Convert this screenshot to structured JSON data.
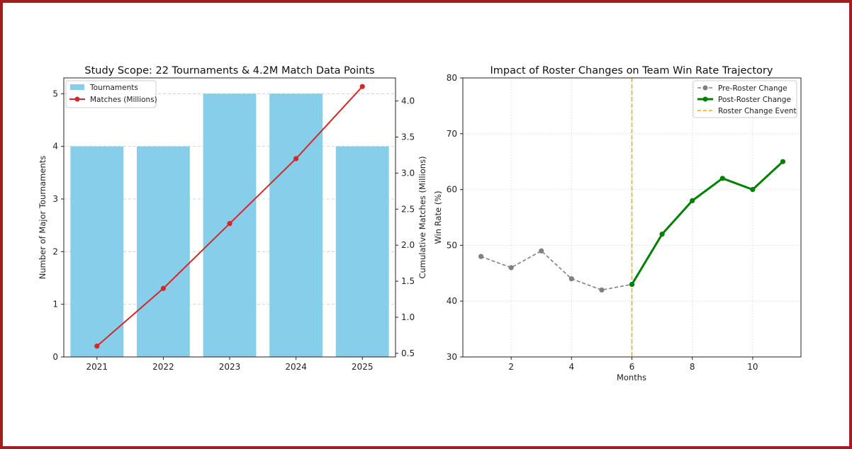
{
  "chart_data": [
    {
      "type": "bar+line",
      "title": "Study Scope: 22 Tournaments & 4.2M Match Data Points",
      "xlabel": "",
      "ylabel": "Number of Major Tournaments",
      "y2label": "Cumulative Matches (Millions)",
      "categories": [
        "2021",
        "2022",
        "2023",
        "2024",
        "2025"
      ],
      "ylim": [
        0,
        5.3
      ],
      "yticks": [
        0,
        1,
        2,
        3,
        4,
        5
      ],
      "y2lim": [
        0.45,
        4.32
      ],
      "y2ticks": [
        0.5,
        1.0,
        1.5,
        2.0,
        2.5,
        3.0,
        3.5,
        4.0
      ],
      "grid": "y-dashed",
      "legend_position": "top-left",
      "series": [
        {
          "name": "Tournaments",
          "kind": "bar",
          "axis": "left",
          "color": "#87ceeb",
          "values": [
            4,
            4,
            5,
            5,
            4
          ]
        },
        {
          "name": "Matches (Millions)",
          "kind": "line",
          "axis": "right",
          "color": "#d62728",
          "values": [
            0.6,
            1.4,
            2.3,
            3.2,
            4.2
          ]
        }
      ]
    },
    {
      "type": "line",
      "title": "Impact of Roster Changes on Team Win Rate Trajectory",
      "xlabel": "Months",
      "ylabel": "Win Rate (%)",
      "xlim": [
        0.4,
        11.6
      ],
      "ylim": [
        30,
        80
      ],
      "xticks": [
        2,
        4,
        6,
        8,
        10
      ],
      "yticks": [
        30,
        40,
        50,
        60,
        70,
        80
      ],
      "grid": "both-dotted",
      "legend_position": "top-right",
      "series": [
        {
          "name": "Pre-Roster Change",
          "style": "dashed",
          "color": "#808080",
          "x": [
            1,
            2,
            3,
            4,
            5,
            6
          ],
          "y": [
            48,
            46,
            49,
            44,
            42,
            43
          ]
        },
        {
          "name": "Post-Roster Change",
          "style": "solid",
          "color": "#008000",
          "x": [
            6,
            7,
            8,
            9,
            10,
            11
          ],
          "y": [
            43,
            52,
            58,
            62,
            60,
            65
          ]
        }
      ],
      "vline": {
        "name": "Roster Change Event",
        "x": 6,
        "color": "#ffa500",
        "style": "dashed"
      }
    }
  ]
}
